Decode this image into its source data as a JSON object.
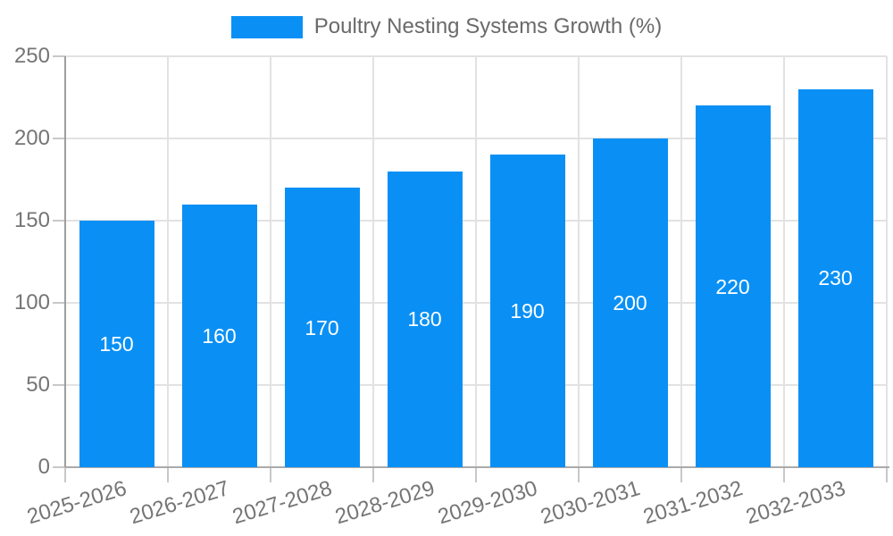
{
  "chart_data": {
    "type": "bar",
    "title": "",
    "legend": {
      "label": "Poultry Nesting Systems Growth (%)",
      "position": "top"
    },
    "categories": [
      "2025-2026",
      "2026-2027",
      "2027-2028",
      "2028-2029",
      "2029-2030",
      "2030-2031",
      "2031-2032",
      "2032-2033"
    ],
    "values": [
      150,
      160,
      170,
      180,
      190,
      200,
      220,
      230
    ],
    "xlabel": "",
    "ylabel": "",
    "ylim": [
      0,
      250
    ],
    "yticks": [
      0,
      50,
      100,
      150,
      200,
      250
    ],
    "grid": true,
    "legend_position": "top"
  },
  "colors": {
    "bar": "#0a90f5",
    "bar_value_label": "#ffffff",
    "gridline": "#e2e2e2",
    "axis_line": "#9e9e9e",
    "tick": "#c8c8c8",
    "axis_text": "#757575",
    "legend_text": "#6a6a6a",
    "background": "#ffffff"
  }
}
